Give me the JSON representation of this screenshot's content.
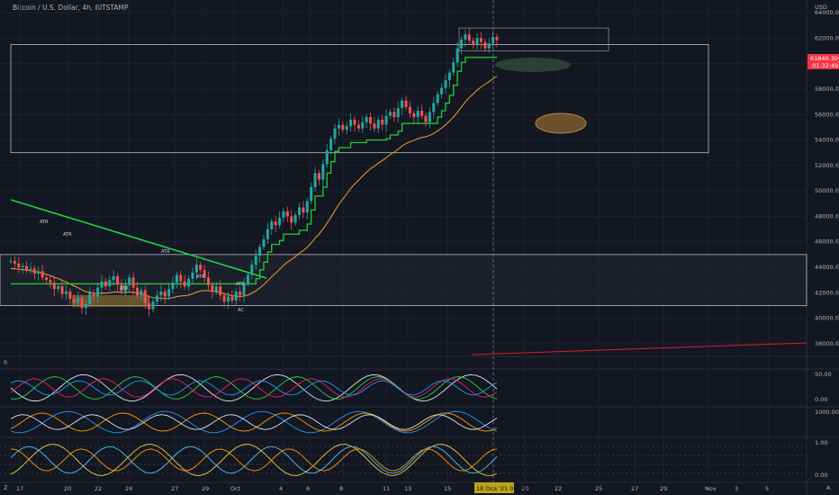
{
  "header": {
    "symbol_title": "Bitcoin / U.S. Dollar, 4h, BITSTAMP",
    "currency": "USD"
  },
  "price_tag": {
    "price": "61840.30",
    "countdown": "01:32:49",
    "color": "#f23645"
  },
  "time_tag": {
    "label": "18 Oca '21  00:00",
    "color": "#b8a414"
  },
  "pane_labels": {
    "main": "Z",
    "osc1": "0",
    "bottom_left": "Z",
    "bottom_right": "A"
  },
  "chart_data": {
    "type": "candlestick",
    "title": "Bitcoin / U.S. Dollar, 4h, BITSTAMP",
    "price_axis": {
      "unit": "USD",
      "ylim": [
        37000,
        65000
      ],
      "ticks": [
        "64000.00",
        "62000.00",
        "60000.00",
        "58000.00",
        "56000.00",
        "54000.00",
        "52000.00",
        "50000.00",
        "48000.00",
        "46000.00",
        "44000.00",
        "42000.00",
        "40000.00",
        "38000.00"
      ]
    },
    "time_axis": {
      "ticks": [
        "17",
        "20",
        "22",
        "24",
        "27",
        "29",
        "Oct",
        "4",
        "6",
        "8",
        "11",
        "13",
        "15",
        "18",
        "20",
        "22",
        "25",
        "27",
        "29",
        "Nov",
        "3",
        "5"
      ]
    },
    "series": {
      "close_path": [
        44500,
        44300,
        44000,
        44100,
        43800,
        43900,
        43500,
        43700,
        43200,
        43000,
        42800,
        42300,
        42500,
        41900,
        42100,
        41500,
        41200,
        41600,
        40800,
        41100,
        42000,
        41700,
        42400,
        42900,
        42500,
        43000,
        43300,
        42700,
        42100,
        42600,
        43200,
        42400,
        41800,
        42200,
        41200,
        40700,
        41300,
        41800,
        42100,
        41700,
        42300,
        42800,
        43400,
        42900,
        42500,
        43100,
        43600,
        44200,
        43800,
        43200,
        42600,
        42100,
        42500,
        41800,
        41300,
        41700,
        41400,
        42100,
        41800,
        42700,
        43400,
        44200,
        44900,
        45600,
        46200,
        47000,
        47600,
        47300,
        47900,
        48400,
        48000,
        47500,
        48100,
        48700,
        48300,
        49200,
        50300,
        51400,
        50900,
        52100,
        53200,
        54100,
        54900,
        55200,
        54800,
        55100,
        55600,
        55200,
        54900,
        55400,
        55800,
        55300,
        54900,
        55600,
        55200,
        55900,
        56200,
        55800,
        56500,
        57100,
        56600,
        56100,
        55800,
        56300,
        55900,
        55400,
        56200,
        56900,
        57600,
        58100,
        58700,
        59300,
        60100,
        61200,
        61900,
        62300,
        61800,
        61500,
        62000,
        61700,
        61200,
        61600,
        62100,
        61840
      ],
      "trailing_stop_label": "ATR",
      "annotations": [
        "ATR",
        "ATR",
        "ATR",
        "ATR",
        "ATR",
        "ATR",
        "AC"
      ]
    },
    "zones": [
      {
        "name": "upper-rectangle",
        "from": 53000,
        "to": 61500
      },
      {
        "name": "top-box",
        "from": 61000,
        "to": 62800
      },
      {
        "name": "support-zone",
        "from": 41000,
        "to": 45000
      }
    ],
    "oscillators": [
      {
        "name": "osc1",
        "ticks": [
          "50.00",
          "0.00"
        ]
      },
      {
        "name": "osc2",
        "ticks": [
          "1000.00"
        ]
      },
      {
        "name": "osc3",
        "ticks": [
          "1.00",
          "0.00"
        ]
      }
    ],
    "grid": true
  }
}
